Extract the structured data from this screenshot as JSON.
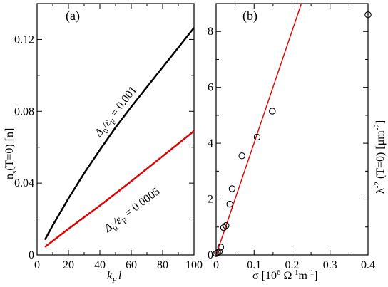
{
  "chart_data": [
    {
      "type": "line",
      "panel_tag": "(a)",
      "xlabel_main": "k",
      "xlabel_sub": "F",
      "xlabel_tail": "l",
      "ylabel_pre": "n",
      "ylabel_sub": "s",
      "ylabel_post": "(T=0) [n]",
      "xlim": [
        0,
        100
      ],
      "ylim": [
        0,
        0.14
      ],
      "x_ticks": [
        0,
        20,
        40,
        60,
        80,
        100
      ],
      "y_ticks": [
        0,
        0.04,
        0.08,
        0.12
      ],
      "y_tick_labels": [
        "0",
        "0.04",
        "0.08",
        "0.12"
      ],
      "grid": false,
      "series": [
        {
          "color": "#000000",
          "label_parts": [
            "Δ",
            "0",
            "/ε",
            "F",
            " = 0.001"
          ],
          "x": [
            5,
            10,
            20,
            30,
            40,
            50,
            60,
            70,
            80,
            90,
            100
          ],
          "y": [
            0.0085,
            0.0165,
            0.0315,
            0.0455,
            0.0585,
            0.071,
            0.0825,
            0.0935,
            0.1045,
            0.1155,
            0.1265
          ]
        },
        {
          "color": "#e00000",
          "label_parts": [
            "Δ",
            "0",
            "/ε",
            "F",
            " = 0.0005"
          ],
          "x": [
            5,
            20,
            40,
            60,
            80,
            100
          ],
          "y": [
            0.0045,
            0.0145,
            0.0275,
            0.041,
            0.055,
            0.069
          ]
        }
      ]
    },
    {
      "type": "scatter",
      "panel_tag": "(b)",
      "xlabel": "σ  [10",
      "xlabel_sup1": "6",
      "xlabel_mid": " Ω",
      "xlabel_sup2": "-1",
      "xlabel_m": "m",
      "xlabel_sup3": "-1",
      "xlabel_end": "]",
      "ylabel_pre": "λ",
      "ylabel_sup": "-2",
      "ylabel_mid": " (T=0) [μm",
      "ylabel_sup2": "-2",
      "ylabel_end": "]",
      "xlim": [
        0,
        0.4
      ],
      "ylim": [
        0,
        9
      ],
      "x_ticks": [
        0,
        0.1,
        0.2,
        0.3,
        0.4
      ],
      "x_tick_labels": [
        "0",
        "0.1",
        "0.2",
        "0.3",
        "0.4"
      ],
      "y_ticks": [
        0,
        2,
        4,
        6,
        8
      ],
      "grid": false,
      "points": {
        "x": [
          0.0,
          0.004,
          0.008,
          0.012,
          0.02,
          0.026,
          0.036,
          0.042,
          0.068,
          0.108,
          0.148,
          0.4
        ],
        "y": [
          0.05,
          0.08,
          0.12,
          0.28,
          0.98,
          1.05,
          1.82,
          2.37,
          3.55,
          4.22,
          5.15,
          8.6
        ]
      },
      "fit_line": {
        "color": "#e00000",
        "x": [
          0,
          0.229
        ],
        "y": [
          0,
          9.2
        ]
      }
    }
  ]
}
